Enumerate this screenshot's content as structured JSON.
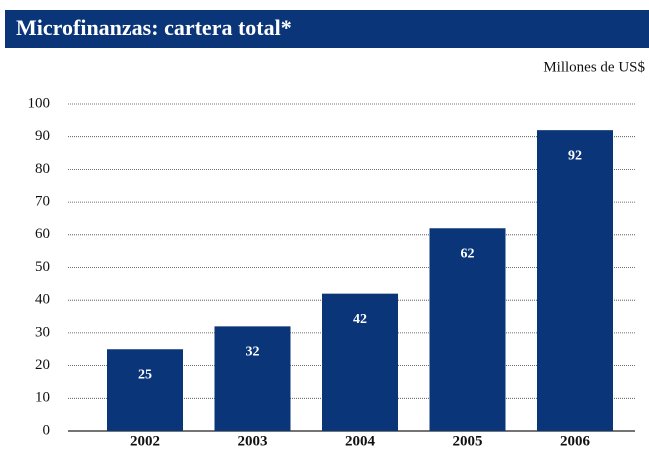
{
  "chart_data": {
    "type": "bar",
    "title": "Microfinanzas: cartera total*",
    "subtitle": "Millones de US$",
    "categories": [
      "2002",
      "2003",
      "2004",
      "2005",
      "2006"
    ],
    "values": [
      25,
      32,
      42,
      62,
      92
    ],
    "color": "#0a3578",
    "ylim": [
      0,
      100
    ],
    "yticks": [
      0,
      10,
      20,
      30,
      40,
      50,
      60,
      70,
      80,
      90,
      100
    ],
    "grid": true
  }
}
